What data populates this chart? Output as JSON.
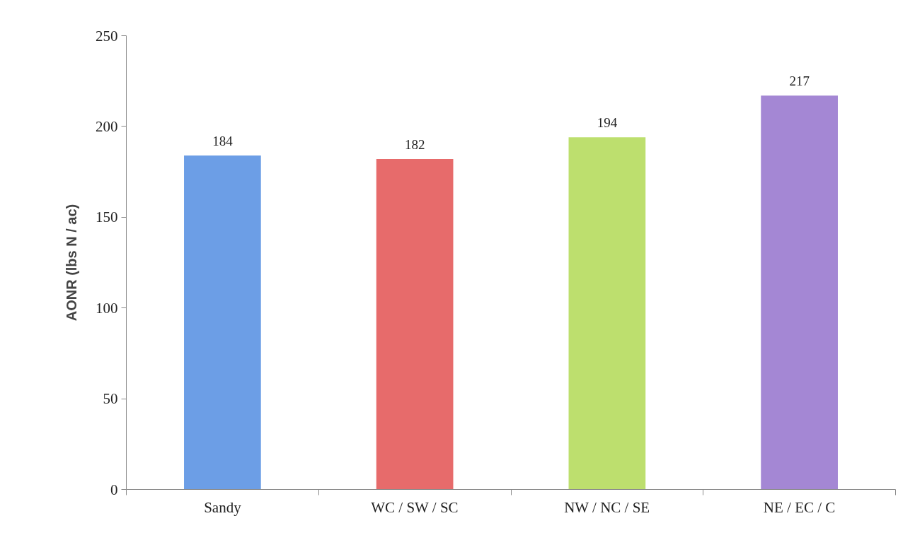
{
  "chart_data": {
    "type": "bar",
    "ylabel": "AONR (lbs N / ac)",
    "categories": [
      "Sandy",
      "WC / SW / SC",
      "NW / NC / SE",
      "NE / EC / C"
    ],
    "values": [
      184,
      182,
      194,
      217
    ],
    "colors": [
      "#6c9ee6",
      "#e76b6b",
      "#bddf6e",
      "#a487d4"
    ],
    "ylim": [
      0,
      250
    ],
    "yticks": [
      0,
      50,
      100,
      150,
      200,
      250
    ],
    "grid": false,
    "data_labels": true
  }
}
